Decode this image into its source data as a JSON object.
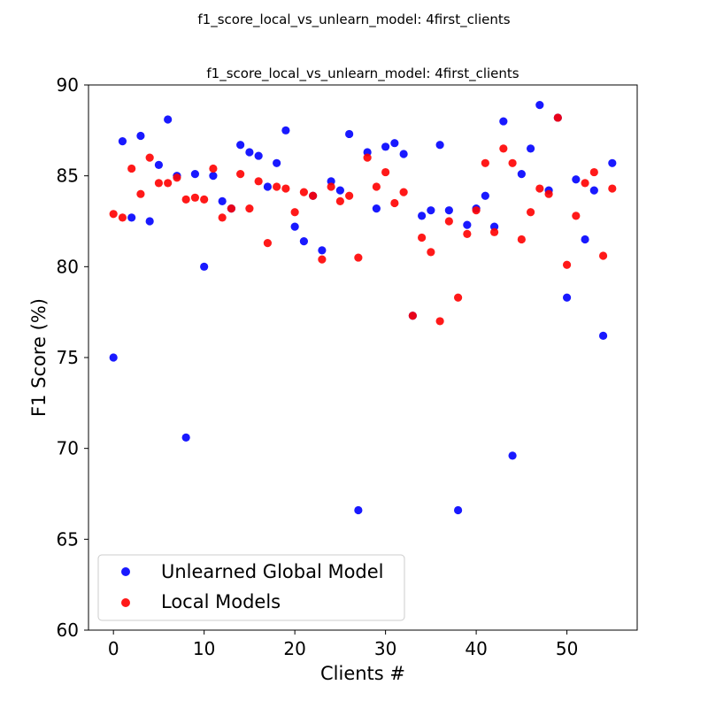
{
  "suptitle": "f1_score_local_vs_unlearn_model: 4first_clients",
  "chart_data": {
    "type": "scatter",
    "title": "f1_score_local_vs_unlearn_model: 4first_clients",
    "xlabel": "Clients #",
    "ylabel": "F1 Score (%)",
    "xlim": [
      -2.75,
      57.75
    ],
    "ylim": [
      60,
      90
    ],
    "xticks": [
      0,
      10,
      20,
      30,
      40,
      50
    ],
    "yticks": [
      60,
      65,
      70,
      75,
      80,
      85,
      90
    ],
    "legend_position": "lower-left",
    "series": [
      {
        "name": "Unlearned Global Model",
        "color": "#0000ff",
        "x": [
          0,
          1,
          2,
          3,
          4,
          5,
          6,
          7,
          8,
          9,
          10,
          11,
          12,
          13,
          14,
          15,
          16,
          17,
          18,
          19,
          20,
          21,
          22,
          23,
          24,
          25,
          26,
          27,
          28,
          29,
          30,
          31,
          32,
          33,
          34,
          35,
          36,
          37,
          38,
          39,
          40,
          41,
          42,
          43,
          44,
          45,
          46,
          47,
          48,
          49,
          50,
          51,
          52,
          53,
          54,
          55
        ],
        "y": [
          75.0,
          86.9,
          82.7,
          87.2,
          82.5,
          85.6,
          88.1,
          85.0,
          70.6,
          85.1,
          80.0,
          85.0,
          83.6,
          83.2,
          86.7,
          86.3,
          86.1,
          84.4,
          85.7,
          87.5,
          82.2,
          81.4,
          83.9,
          80.9,
          84.7,
          84.2,
          87.3,
          66.6,
          86.3,
          83.2,
          86.6,
          86.8,
          86.2,
          77.3,
          82.8,
          83.1,
          86.7,
          83.1,
          66.6,
          82.3,
          83.2,
          83.9,
          82.2,
          88.0,
          69.6,
          85.1,
          86.5,
          88.9,
          84.2,
          88.2,
          78.3,
          84.8,
          81.5,
          84.2,
          76.2,
          85.7
        ]
      },
      {
        "name": "Local Models",
        "color": "#ff0000",
        "x": [
          0,
          1,
          2,
          3,
          4,
          5,
          6,
          7,
          8,
          9,
          10,
          11,
          12,
          13,
          14,
          15,
          16,
          17,
          18,
          19,
          20,
          21,
          22,
          23,
          24,
          25,
          26,
          27,
          28,
          29,
          30,
          31,
          32,
          33,
          34,
          35,
          36,
          37,
          38,
          39,
          40,
          41,
          42,
          43,
          44,
          45,
          46,
          47,
          48,
          49,
          50,
          51,
          52,
          53,
          54,
          55
        ],
        "y": [
          82.9,
          82.7,
          85.4,
          84.0,
          86.0,
          84.6,
          84.6,
          84.9,
          83.7,
          83.8,
          83.7,
          85.4,
          82.7,
          83.2,
          85.1,
          83.2,
          84.7,
          81.3,
          84.4,
          84.3,
          83.0,
          84.1,
          83.9,
          80.4,
          84.4,
          83.6,
          83.9,
          80.5,
          86.0,
          84.4,
          85.2,
          83.5,
          84.1,
          77.3,
          81.6,
          80.8,
          77.0,
          82.5,
          78.3,
          81.8,
          83.1,
          85.7,
          81.9,
          86.5,
          85.7,
          81.5,
          83.0,
          84.3,
          84.0,
          88.2,
          80.1,
          82.8,
          84.6,
          85.2,
          80.6,
          84.3
        ]
      }
    ]
  }
}
